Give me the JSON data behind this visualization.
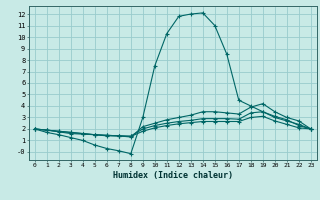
{
  "xlabel": "Humidex (Indice chaleur)",
  "bg_color": "#c8eae6",
  "line_color": "#006666",
  "grid_color": "#99cccc",
  "xlim": [
    -0.5,
    23.5
  ],
  "ylim": [
    -0.7,
    12.7
  ],
  "xticks": [
    0,
    1,
    2,
    3,
    4,
    5,
    6,
    7,
    8,
    9,
    10,
    11,
    12,
    13,
    14,
    15,
    16,
    17,
    18,
    19,
    20,
    21,
    22,
    23
  ],
  "yticks": [
    0,
    1,
    2,
    3,
    4,
    5,
    6,
    7,
    8,
    9,
    10,
    11,
    12
  ],
  "ytick_labels": [
    "-0",
    "1",
    "2",
    "3",
    "4",
    "5",
    "6",
    "7",
    "8",
    "9",
    "10",
    "11",
    "12"
  ],
  "lines": [
    {
      "x": [
        0,
        1,
        2,
        3,
        4,
        5,
        6,
        7,
        8,
        9,
        10,
        11,
        12,
        13,
        14,
        15,
        16,
        17,
        18,
        19,
        20,
        21,
        22,
        23
      ],
      "y": [
        2,
        1.7,
        1.5,
        1.25,
        1.0,
        0.6,
        0.3,
        0.1,
        -0.15,
        3.0,
        7.5,
        10.3,
        11.8,
        12.0,
        12.1,
        11.0,
        8.5,
        4.5,
        4.0,
        3.5,
        3.1,
        2.8,
        2.3,
        2.0
      ]
    },
    {
      "x": [
        0,
        1,
        2,
        3,
        4,
        5,
        6,
        7,
        8,
        9,
        10,
        11,
        12,
        13,
        14,
        15,
        16,
        17,
        18,
        19,
        20,
        21,
        22,
        23
      ],
      "y": [
        2,
        1.9,
        1.8,
        1.7,
        1.6,
        1.5,
        1.4,
        1.4,
        1.3,
        2.2,
        2.5,
        2.8,
        3.0,
        3.2,
        3.5,
        3.5,
        3.4,
        3.3,
        3.9,
        4.2,
        3.5,
        3.0,
        2.7,
        2.0
      ]
    },
    {
      "x": [
        0,
        1,
        2,
        3,
        4,
        5,
        6,
        7,
        8,
        9,
        10,
        11,
        12,
        13,
        14,
        15,
        16,
        17,
        18,
        19,
        20,
        21,
        22,
        23
      ],
      "y": [
        2,
        1.9,
        1.8,
        1.7,
        1.6,
        1.5,
        1.45,
        1.4,
        1.38,
        2.0,
        2.3,
        2.5,
        2.65,
        2.75,
        2.9,
        2.9,
        2.9,
        2.85,
        3.4,
        3.5,
        3.0,
        2.7,
        2.4,
        2.0
      ]
    },
    {
      "x": [
        0,
        1,
        2,
        3,
        4,
        5,
        6,
        7,
        8,
        9,
        10,
        11,
        12,
        13,
        14,
        15,
        16,
        17,
        18,
        19,
        20,
        21,
        22,
        23
      ],
      "y": [
        2,
        1.9,
        1.75,
        1.6,
        1.55,
        1.5,
        1.45,
        1.4,
        1.35,
        1.8,
        2.1,
        2.3,
        2.45,
        2.55,
        2.65,
        2.65,
        2.65,
        2.65,
        3.0,
        3.1,
        2.7,
        2.4,
        2.1,
        2.0
      ]
    }
  ]
}
